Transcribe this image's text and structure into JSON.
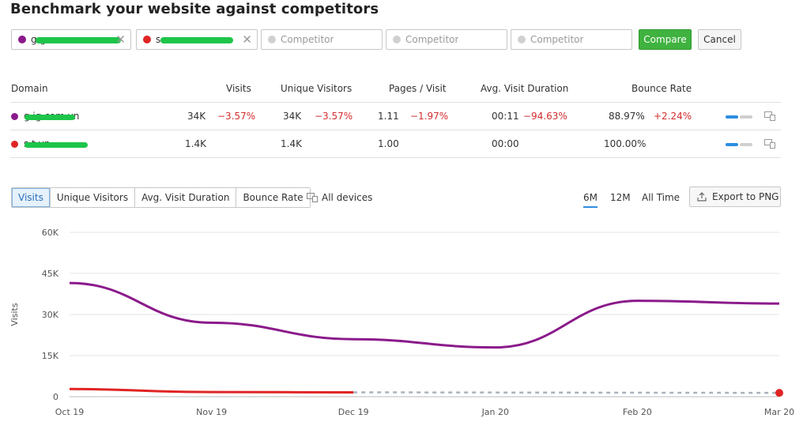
{
  "page": {
    "title": "Benchmark your website against competitors"
  },
  "competitors": [
    {
      "label": "g             g",
      "color": "#8b1a8b",
      "filled": true
    },
    {
      "label": "s                 ...",
      "color": "#e02424",
      "filled": true
    },
    {
      "label": "Competitor",
      "color": "#d0d0d0",
      "filled": false
    },
    {
      "label": "Competitor",
      "color": "#d0d0d0",
      "filled": false
    },
    {
      "label": "Competitor",
      "color": "#d0d0d0",
      "filled": false
    }
  ],
  "actions": {
    "compare": "Compare",
    "cancel": "Cancel"
  },
  "table": {
    "headers": [
      "Domain",
      "Visits",
      "Unique Visitors",
      "Pages / Visit",
      "Avg. Visit Duration",
      "Bounce Rate"
    ],
    "rows": [
      {
        "domain": "g          ig.com.vn",
        "color": "#8b1a8b",
        "visits": "34K",
        "visits_delta": "−3.57%",
        "unique": "34K",
        "unique_delta": "−3.57%",
        "pages": "1.11",
        "pages_delta": "−1.97%",
        "duration": "00:11",
        "duration_delta": "−94.63%",
        "bounce": "88.97%",
        "bounce_delta": "+2.24%"
      },
      {
        "domain": "s                t.vn",
        "color": "#e02424",
        "visits": "1.4K",
        "visits_delta": "",
        "unique": "1.4K",
        "unique_delta": "",
        "pages": "1.00",
        "pages_delta": "",
        "duration": "00:00",
        "duration_delta": "",
        "bounce": "100.00%",
        "bounce_delta": ""
      }
    ]
  },
  "metric_tabs": [
    "Visits",
    "Unique Visitors",
    "Avg. Visit Duration",
    "Bounce Rate"
  ],
  "active_metric": "Visits",
  "devices_label": "All devices",
  "time_ranges": [
    "6M",
    "12M",
    "All Time"
  ],
  "active_range": "6M",
  "export_label": "Export to PNG",
  "colors": {
    "accent": "#2e8de0",
    "compare_green": "#3fb23f",
    "series1": "#8b1a8b",
    "series2": "#e02424",
    "projection": "#a9b2bb"
  },
  "chart_data": {
    "type": "line",
    "ylabel": "Visits",
    "xlabel": "",
    "categories": [
      "Oct 19",
      "Nov 19",
      "Dec 19",
      "Jan 20",
      "Feb 20",
      "Mar 20"
    ],
    "y_ticks": [
      "0",
      "15K",
      "30K",
      "45K",
      "60K"
    ],
    "ylim": [
      0,
      60000
    ],
    "series": [
      {
        "name": "g          ig.com.vn",
        "color": "#8b1a8b",
        "values": [
          41500,
          27000,
          21000,
          18000,
          35000,
          34000
        ]
      },
      {
        "name": "s                t.vn",
        "color": "#e02424",
        "values": [
          2800,
          1700,
          1600,
          null,
          null,
          1400
        ],
        "dashed_after_index": 2
      }
    ]
  }
}
